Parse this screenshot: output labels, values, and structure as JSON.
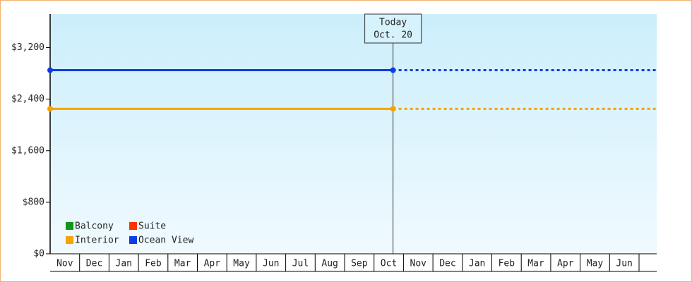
{
  "chart_data": {
    "type": "line",
    "categories": [
      "Nov",
      "Dec",
      "Jan",
      "Feb",
      "Mar",
      "Apr",
      "May",
      "Jun",
      "Jul",
      "Aug",
      "Sep",
      "Oct",
      "Nov",
      "Dec",
      "Jan",
      "Feb",
      "Mar",
      "Apr",
      "May",
      "Jun"
    ],
    "today": {
      "title": "Today",
      "date": "Oct. 20"
    },
    "series": [
      {
        "name": "Balcony",
        "color": "#109618",
        "value": null
      },
      {
        "name": "Suite",
        "color": "#ff3300",
        "value": null
      },
      {
        "name": "Interior",
        "color": "#f5a300",
        "value": 2250
      },
      {
        "name": "Ocean View",
        "color": "#0d3be6",
        "value": 2850
      }
    ],
    "ylim": [
      0,
      3720
    ],
    "yticks": [
      {
        "value": 0,
        "label": "$0"
      },
      {
        "value": 800,
        "label": "$800"
      },
      {
        "value": 1600,
        "label": "$1,600"
      },
      {
        "value": 2400,
        "label": "$2,400"
      },
      {
        "value": 3200,
        "label": "$3,200"
      }
    ]
  }
}
